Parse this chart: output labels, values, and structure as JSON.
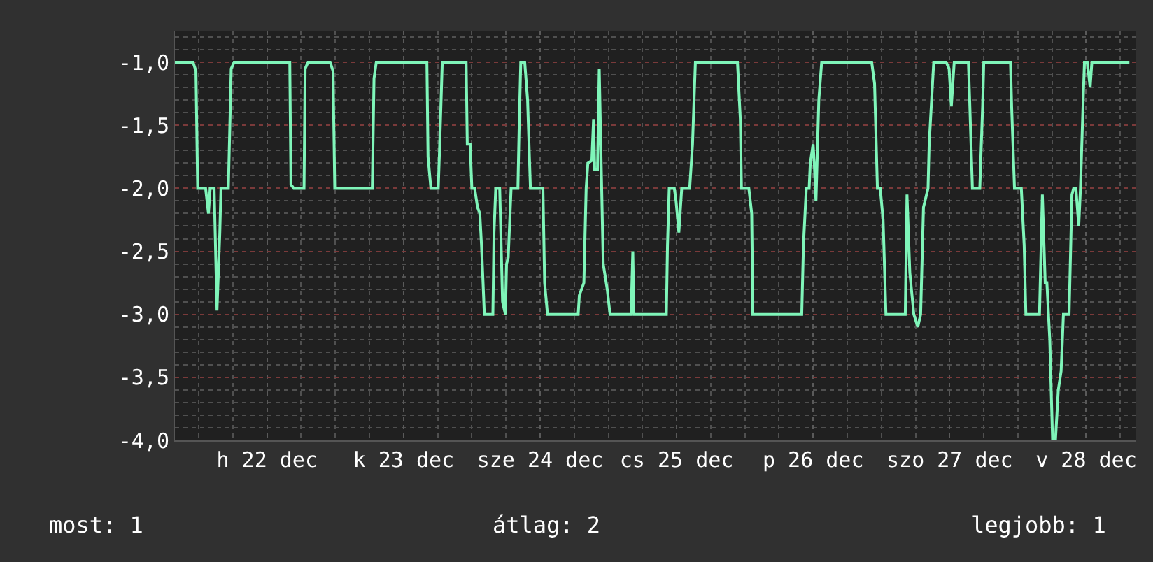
{
  "chart_data": {
    "type": "line",
    "color": "#7ff5b9",
    "marker": "none",
    "line_style": "solid",
    "grid": true,
    "xlim": [
      "--12-21T19:48",
      "--12-28T20:48"
    ],
    "ylim": [
      -4.0,
      -0.75
    ],
    "xticks": [
      {
        "value": "--12-22T12:00",
        "label": "h 22 dec"
      },
      {
        "value": "--12-23T12:00",
        "label": "k 23 dec"
      },
      {
        "value": "--12-24T12:00",
        "label": "sze 24 dec"
      },
      {
        "value": "--12-25T12:00",
        "label": "cs 25 dec"
      },
      {
        "value": "--12-26T12:00",
        "label": "p 26 dec"
      },
      {
        "value": "--12-27T12:00",
        "label": "szo 27 dec"
      },
      {
        "value": "--12-28T12:00",
        "label": "v 28 dec"
      }
    ],
    "yticks": [
      {
        "value": -1.0,
        "label": "-1,0"
      },
      {
        "value": -1.5,
        "label": "-1,5"
      },
      {
        "value": -2.0,
        "label": "-2,0"
      },
      {
        "value": -2.5,
        "label": "-2,5"
      },
      {
        "value": -3.0,
        "label": "-3,0"
      },
      {
        "value": -3.5,
        "label": "-3,5"
      },
      {
        "value": -4.0,
        "label": "-4,0"
      }
    ],
    "annotations": [
      "most: 1",
      "átlag: 2",
      "legjobb: 1"
    ],
    "x": [
      "--12-21T19:48",
      "--12-21T23:00",
      "--12-21T23:30",
      "--12-21T23:48",
      "--12-22T01:12",
      "--12-22T01:42",
      "--12-22T02:00",
      "--12-22T02:42",
      "--12-22T03:12",
      "--12-22T03:42",
      "--12-22T03:54",
      "--12-22T05:12",
      "--12-22T05:42",
      "--12-22T06:12",
      "--12-22T16:00",
      "--12-22T16:12",
      "--12-22T16:42",
      "--12-22T18:30",
      "--12-22T18:42",
      "--12-22T19:12",
      "--12-22T23:06",
      "--12-22T23:36",
      "--12-22T23:54",
      "--12-23T06:30",
      "--12-23T06:48",
      "--12-23T07:12",
      "--12-23T16:06",
      "--12-23T16:18",
      "--12-23T16:48",
      "--12-23T18:06",
      "--12-23T18:18",
      "--12-23T18:48",
      "--12-23T23:00",
      "--12-23T23:12",
      "--12-23T23:42",
      "--12-24T00:00",
      "--12-24T00:30",
      "--12-24T01:00",
      "--12-24T01:24",
      "--12-24T01:42",
      "--12-24T02:12",
      "--12-24T03:42",
      "--12-24T03:54",
      "--12-24T04:12",
      "--12-24T04:54",
      "--12-24T05:24",
      "--12-24T05:54",
      "--12-24T06:06",
      "--12-24T06:24",
      "--12-24T06:54",
      "--12-24T08:06",
      "--12-24T08:18",
      "--12-24T08:36",
      "--12-24T09:18",
      "--12-24T09:48",
      "--12-24T10:18",
      "--12-24T12:30",
      "--12-24T12:48",
      "--12-24T13:18",
      "--12-24T18:42",
      "--12-24T18:54",
      "--12-24T19:42",
      "--12-24T20:06",
      "--12-24T20:24",
      "--12-24T21:06",
      "--12-24T21:24",
      "--12-24T21:36",
      "--12-24T22:06",
      "--12-24T22:24",
      "--12-24T22:36",
      "--12-24T23:06",
      "--12-24T23:48",
      "--12-25T00:18",
      "--12-25T04:00",
      "--12-25T04:18",
      "--12-25T04:30",
      "--12-25T10:12",
      "--12-25T10:24",
      "--12-25T10:42",
      "--12-25T11:36",
      "--12-25T11:54",
      "--12-25T12:24",
      "--12-25T12:54",
      "--12-25T14:18",
      "--12-25T14:48",
      "--12-25T15:18",
      "--12-25T22:42",
      "--12-25T23:12",
      "--12-25T23:24",
      "--12-26T00:42",
      "--12-26T01:12",
      "--12-26T01:24",
      "--12-26T01:54",
      "--12-26T10:00",
      "--12-26T10:18",
      "--12-26T10:48",
      "--12-26T11:18",
      "--12-26T11:30",
      "--12-26T12:00",
      "--12-26T12:12",
      "--12-26T12:30",
      "--12-26T13:00",
      "--12-26T13:30",
      "--12-26T22:18",
      "--12-26T22:48",
      "--12-26T23:18",
      "--12-26T23:48",
      "--12-27T00:18",
      "--12-27T00:48",
      "--12-27T04:12",
      "--12-27T04:30",
      "--12-27T05:00",
      "--12-27T05:42",
      "--12-27T06:24",
      "--12-27T06:54",
      "--12-27T07:24",
      "--12-27T08:12",
      "--12-27T08:24",
      "--12-27T09:12",
      "--12-27T11:24",
      "--12-27T11:54",
      "--12-27T12:18",
      "--12-27T12:48",
      "--12-27T15:18",
      "--12-27T15:30",
      "--12-27T16:00",
      "--12-27T17:18",
      "--12-27T17:48",
      "--12-27T18:00",
      "--12-27T22:42",
      "--12-27T22:54",
      "--12-27T23:24",
      "--12-28T00:36",
      "--12-28T01:06",
      "--12-28T01:24",
      "--12-28T03:48",
      "--12-28T04:18",
      "--12-28T04:48",
      "--12-28T05:06",
      "--12-28T05:36",
      "--12-28T06:06",
      "--12-28T06:36",
      "--12-28T07:06",
      "--12-28T07:36",
      "--12-28T08:00",
      "--12-28T09:00",
      "--12-28T09:30",
      "--12-28T09:48",
      "--12-28T10:12",
      "--12-28T10:42",
      "--12-28T11:00",
      "--12-28T11:30",
      "--12-28T11:42",
      "--12-28T12:12",
      "--12-28T12:42",
      "--12-28T13:00",
      "--12-28T19:36"
    ],
    "values": [
      -1.0,
      -1.0,
      -1.07,
      -2.0,
      -2.0,
      -2.2,
      -2.0,
      -2.0,
      -2.97,
      -2.35,
      -2.0,
      -2.0,
      -1.05,
      -1.0,
      -1.0,
      -1.97,
      -2.0,
      -2.0,
      -1.05,
      -1.0,
      -1.0,
      -1.07,
      -2.0,
      -2.0,
      -1.13,
      -1.0,
      -1.0,
      -1.75,
      -2.0,
      -2.0,
      -1.73,
      -1.0,
      -1.0,
      -1.65,
      -1.65,
      -2.0,
      -2.0,
      -2.15,
      -2.2,
      -2.45,
      -3.0,
      -3.0,
      -2.35,
      -2.0,
      -2.0,
      -2.9,
      -3.0,
      -2.6,
      -2.55,
      -2.0,
      -2.0,
      -1.55,
      -1.0,
      -1.0,
      -1.3,
      -2.0,
      -2.0,
      -2.75,
      -3.0,
      -3.0,
      -2.85,
      -2.75,
      -2.0,
      -1.8,
      -1.78,
      -1.45,
      -1.85,
      -1.85,
      -1.05,
      -1.5,
      -2.6,
      -2.8,
      -3.0,
      -3.0,
      -2.5,
      -3.0,
      -3.0,
      -2.45,
      -2.0,
      -2.0,
      -2.1,
      -2.35,
      -2.0,
      -2.0,
      -1.65,
      -1.0,
      -1.0,
      -1.45,
      -2.0,
      -2.0,
      -2.2,
      -3.0,
      -3.0,
      -3.0,
      -2.45,
      -2.0,
      -2.0,
      -1.8,
      -1.65,
      -1.8,
      -2.1,
      -1.3,
      -1.0,
      -1.0,
      -1.17,
      -2.0,
      -2.0,
      -2.25,
      -3.0,
      -3.0,
      -2.05,
      -2.67,
      -3.0,
      -3.1,
      -3.0,
      -2.15,
      -2.0,
      -1.65,
      -1.0,
      -1.0,
      -1.05,
      -1.35,
      -1.0,
      -1.0,
      -1.27,
      -2.0,
      -2.0,
      -1.35,
      -1.0,
      -1.0,
      -1.35,
      -2.0,
      -2.0,
      -2.45,
      -3.0,
      -3.0,
      -2.05,
      -2.75,
      -2.75,
      -3.2,
      -4.0,
      -4.0,
      -3.6,
      -3.45,
      -3.0,
      -3.0,
      -2.05,
      -2.0,
      -2.0,
      -2.3,
      -2.0,
      -1.27,
      -1.0,
      -1.0,
      -1.2,
      -1.0,
      -1.0
    ]
  }
}
